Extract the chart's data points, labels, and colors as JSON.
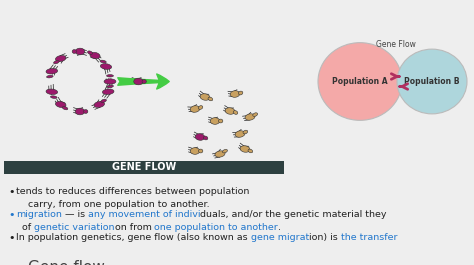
{
  "title": "Gene flow",
  "bg_color": "#eeeeee",
  "title_color": "#444444",
  "bullet_color": "#222222",
  "blue_color": "#2277cc",
  "bullet3": "tends to reduces differences between population",
  "banner_text": "GENE FLOW",
  "banner_bg": "#2d4040",
  "banner_text_color": "#ffffff",
  "pop_a_label": "Population A",
  "pop_b_label": "Population B",
  "gene_flow_label": "Gene Flow",
  "pop_a_color": "#f4a9a8",
  "pop_b_color": "#aed6dc",
  "arrow_color": "#b03060",
  "purple_bug": "#9b1a6b",
  "tan_bug": "#c8a060",
  "green_arrow": "#44cc44",
  "line1a": "In population genetics, gene flow (also known as ",
  "line1b": "gene migrat",
  "line1c": "ion) is ",
  "line1d": "the transfer",
  "line2a": "of ",
  "line2b": "genetic variation",
  "line2c": "on from ",
  "line2d": "one population to another",
  "line2e": ".",
  "line3a": "migration",
  "line3b": " — is ",
  "line3c": "any movement of indivi",
  "line3d": "duals, and/or the genetic material they",
  "line4": "  carry, from one population to another."
}
